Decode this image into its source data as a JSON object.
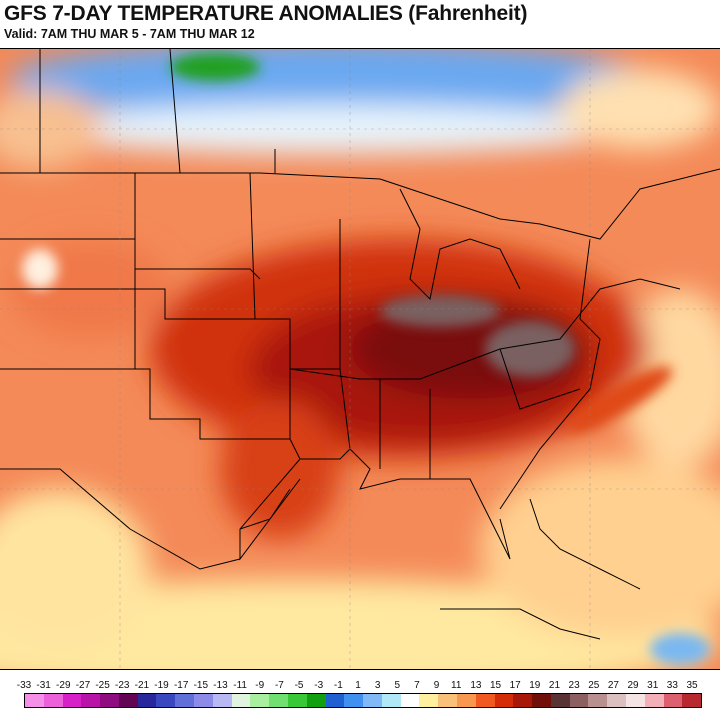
{
  "header": {
    "title": "GFS 7-DAY TEMPERATURE ANOMALIES (Fahrenheit)",
    "subtitle": "Valid: 7AM THU MAR 5 - 7AM THU MAR 12"
  },
  "colorbar": {
    "labels": [
      "-33",
      "-31",
      "-29",
      "-27",
      "-25",
      "-23",
      "-21",
      "-19",
      "-17",
      "-15",
      "-13",
      "-11",
      "-9",
      "-7",
      "-5",
      "-3",
      "-1",
      "1",
      "3",
      "5",
      "7",
      "9",
      "11",
      "13",
      "15",
      "17",
      "19",
      "21",
      "23",
      "25",
      "27",
      "29",
      "31",
      "33",
      "35"
    ],
    "colors": [
      "#f490e8",
      "#ec60dc",
      "#d820c8",
      "#b814a8",
      "#8e0c80",
      "#620654",
      "#28289c",
      "#3a48c0",
      "#6070d8",
      "#8c8ce8",
      "#b8b8f4",
      "#e0f4e0",
      "#a8f0a0",
      "#70e070",
      "#38c838",
      "#10a010",
      "#2060d0",
      "#4090f0",
      "#80b8f8",
      "#b0e8f8",
      "#ffffff",
      "#fff0a0",
      "#f8c078",
      "#f89850",
      "#f05a20",
      "#d42c08",
      "#a81808",
      "#701008",
      "#5a3434",
      "#8c6060",
      "#b89090",
      "#dcc0c0",
      "#f4e4e4",
      "#f4b0b8",
      "#dc6070",
      "#b82830"
    ]
  },
  "map": {
    "anomaly_peak_f": 19,
    "colors": {
      "warm": "#f06a3a",
      "hot": "#a81808",
      "extreme": "#7a6060",
      "cold": "#5a9cf0",
      "neutral": "#ffe8a0",
      "green": "#20a020"
    }
  }
}
